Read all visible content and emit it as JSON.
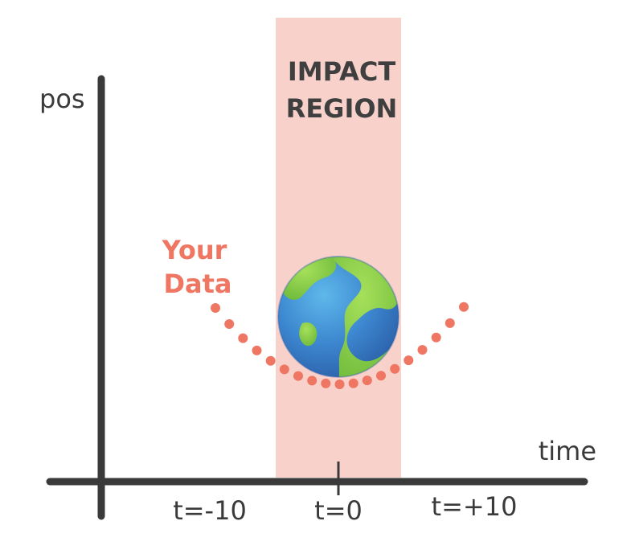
{
  "diagram": {
    "axes": {
      "y_label": "pos",
      "x_label": "time",
      "ticks": [
        "t=-10",
        "t=0",
        "t=+10"
      ]
    },
    "impact_region": {
      "line1": "IMPACT",
      "line2": "REGION",
      "color": "#f8d1ca"
    },
    "data_label": {
      "line1": "Your",
      "line2": "Data",
      "color": "#ee7662"
    },
    "earth": {
      "icon": "earth-globe-icon",
      "ocean_color": "#3c86cf",
      "land_color": "#8fd14a"
    },
    "axis_color": "#3a3a3a"
  }
}
